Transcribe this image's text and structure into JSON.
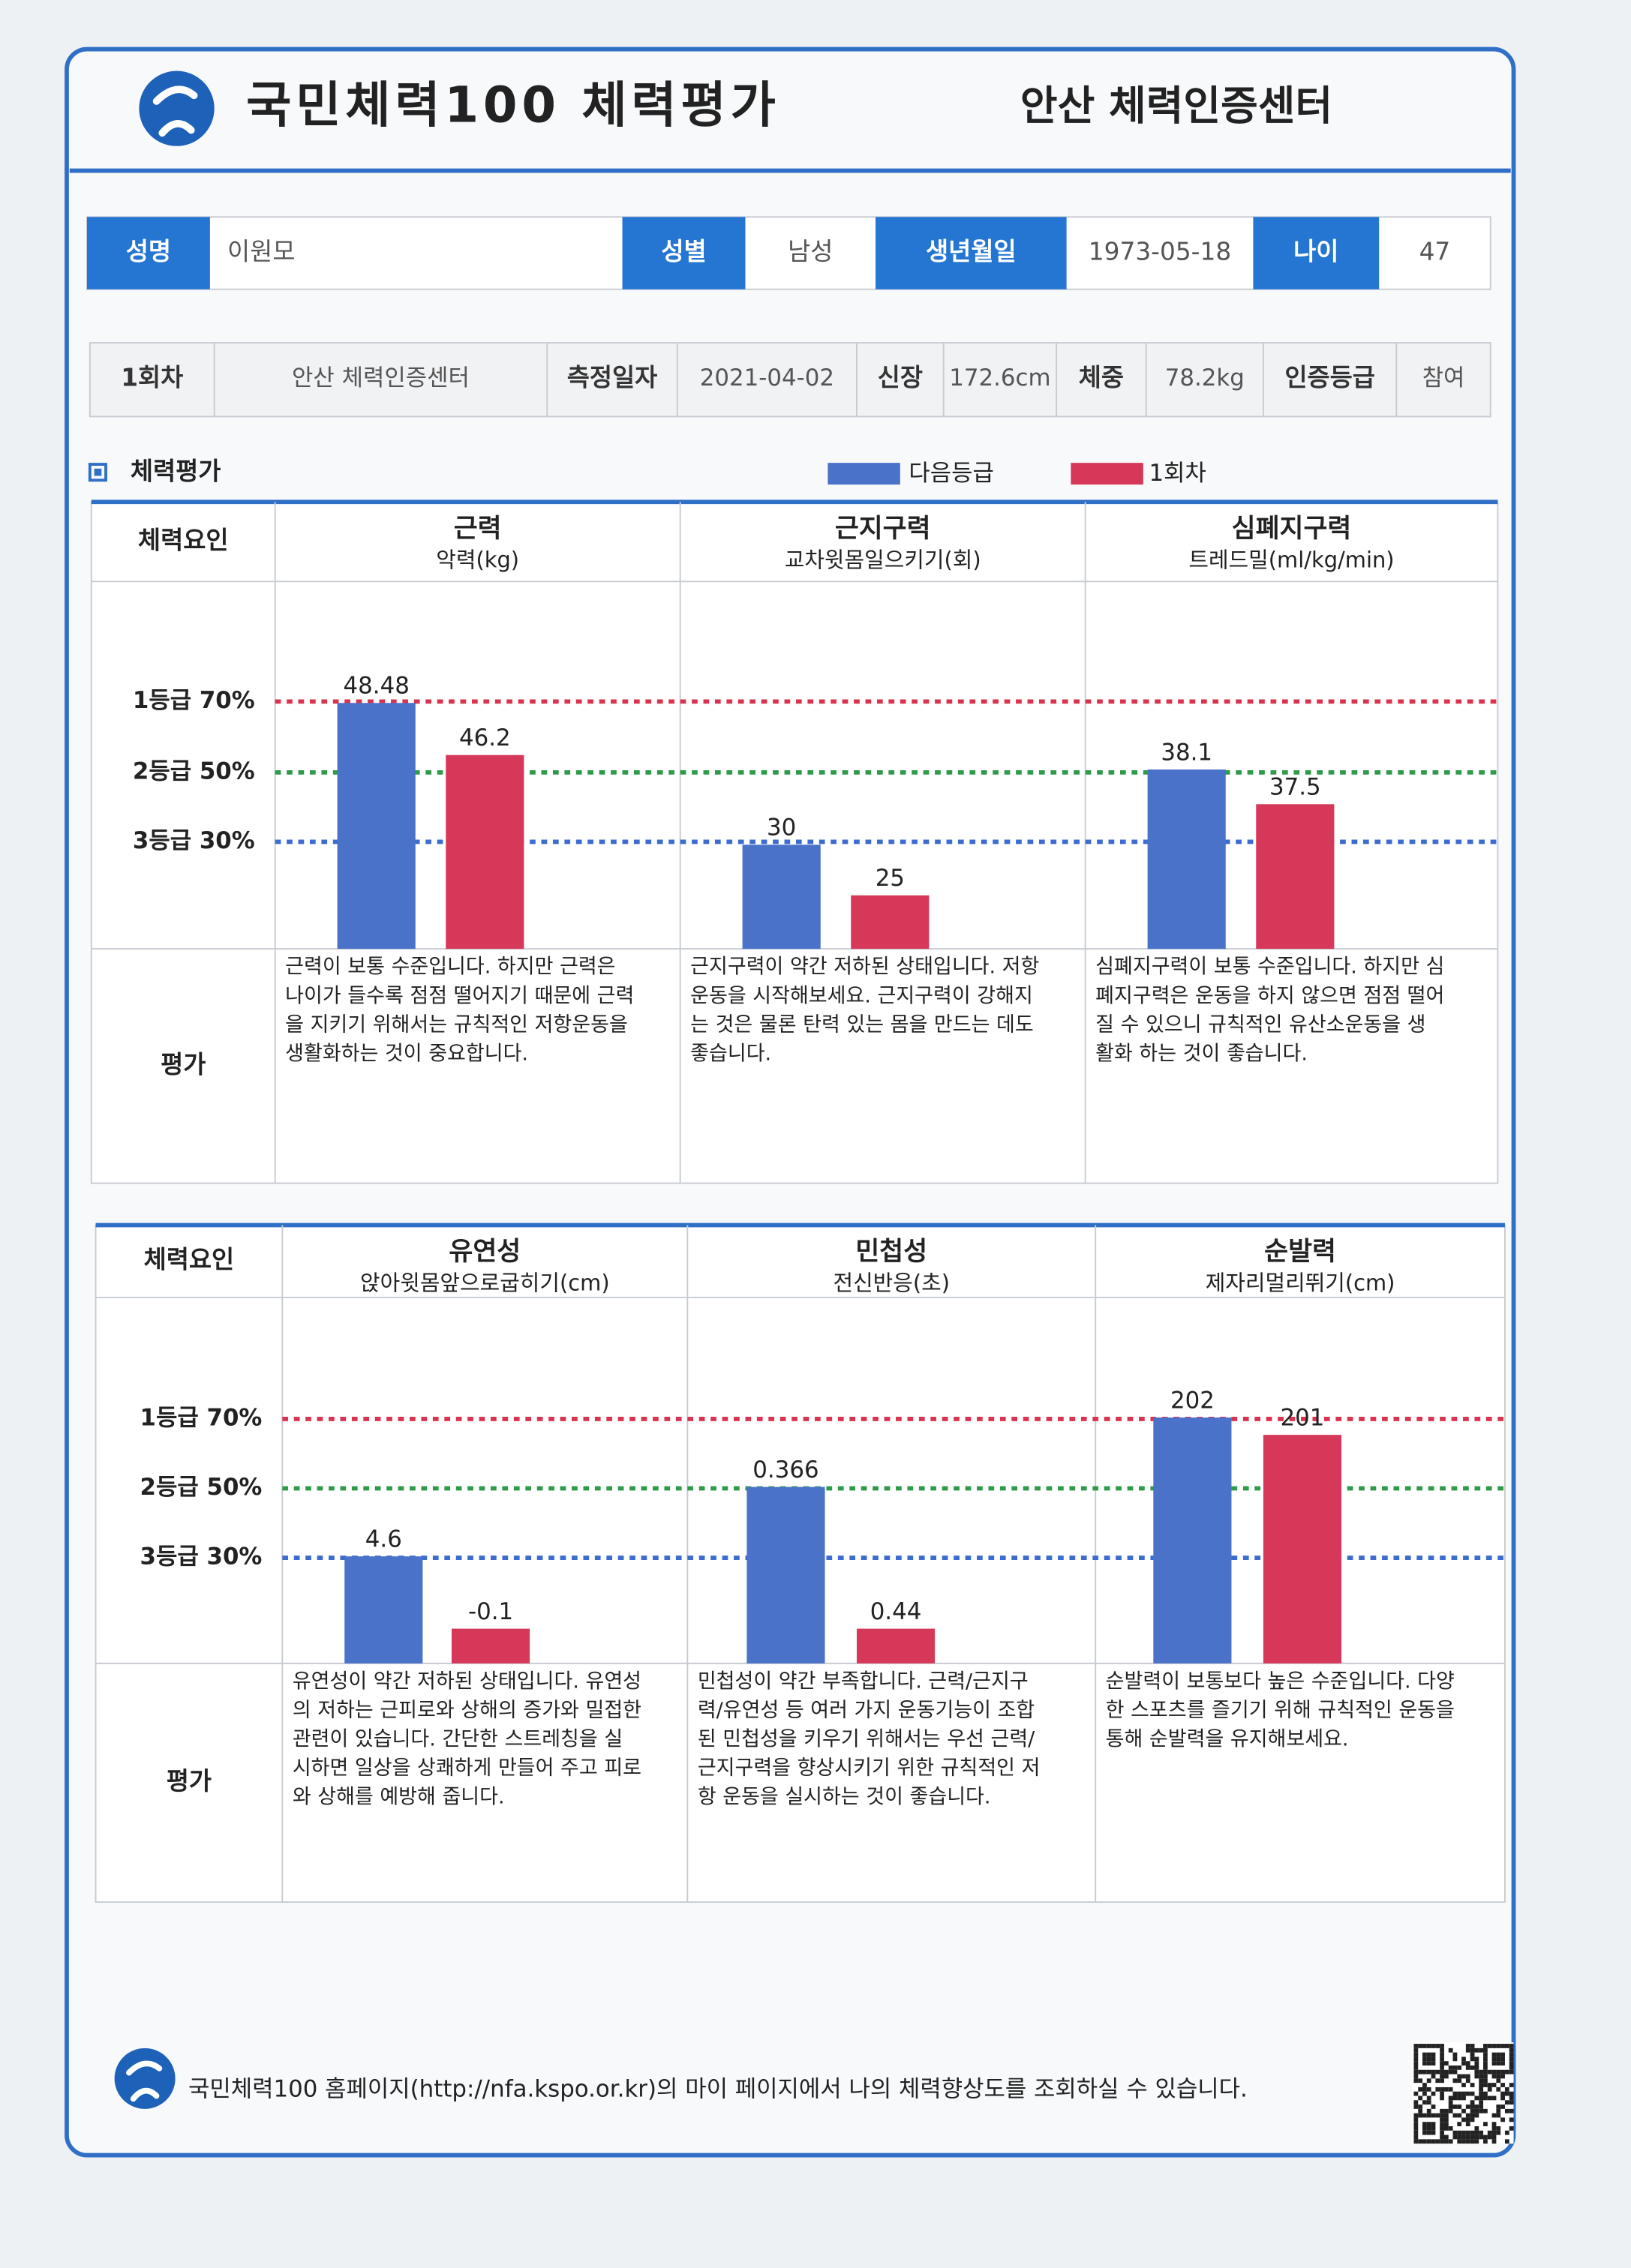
{
  "header": {
    "title": "국민체력100 체력평가",
    "center": "안산 체력인증센터"
  },
  "profile": [
    {
      "label": "성명",
      "value": "이원모"
    },
    {
      "label": "성별",
      "value": "남성"
    },
    {
      "label": "생년월일",
      "value": "1973-05-18"
    },
    {
      "label": "나이",
      "value": "47"
    }
  ],
  "session": {
    "round": "1회차",
    "place": "안산 체력인증센터",
    "fields": [
      {
        "label": "측정일자",
        "value": "2021-04-02"
      },
      {
        "label": "신장",
        "value": "172.6cm"
      },
      {
        "label": "체중",
        "value": "78.2kg"
      },
      {
        "label": "인증등급",
        "value": "참여"
      }
    ]
  },
  "section": {
    "title": "체력평가",
    "legend": [
      "다음등급",
      "1회차"
    ]
  },
  "panels": [
    {
      "factor_label": "체력요인",
      "eval_label": "평가",
      "grades": [
        "1등급 70%",
        "2등급 50%",
        "3등급 30%"
      ],
      "items": [
        {
          "title": "근력",
          "test": "악력(kg)",
          "next": 48.48,
          "current": 46.2,
          "evaluation": [
            "근력이 보통 수준입니다. 하지만 근력은",
            "나이가 들수록 점점 떨어지기 때문에 근력",
            "을 지키기 위해서는 규칙적인 저항운동을",
            "생활화하는 것이 중요합니다."
          ]
        },
        {
          "title": "근지구력",
          "test": "교차윗몸일으키기(회)",
          "next": 30,
          "current": 25,
          "evaluation": [
            "근지구력이 약간 저하된 상태입니다. 저항",
            "운동을 시작해보세요. 근지구력이 강해지",
            "는 것은 물론 탄력 있는 몸을 만드는 데도",
            "좋습니다."
          ]
        },
        {
          "title": "심폐지구력",
          "test": "트레드밀(ml/kg/min)",
          "next": 38.1,
          "current": 37.5,
          "evaluation": [
            "심폐지구력이 보통 수준입니다. 하지만 심",
            "폐지구력은 운동을 하지 않으면 점점 떨어",
            "질 수 있으니  규칙적인 유산소운동을 생",
            "활화 하는 것이 좋습니다."
          ]
        }
      ]
    },
    {
      "factor_label": "체력요인",
      "eval_label": "평가",
      "grades": [
        "1등급 70%",
        "2등급 50%",
        "3등급 30%"
      ],
      "items": [
        {
          "title": "유연성",
          "test": "앉아윗몸앞으로굽히기(cm)",
          "next": 4.6,
          "current": -0.1,
          "evaluation": [
            "유연성이 약간 저하된 상태입니다. 유연성",
            "의 저하는 근피로와 상해의 증가와 밀접한",
            "관련이 있습니다. 간단한 스트레칭을 실",
            "시하면 일상을 상쾌하게 만들어 주고 피로",
            "와 상해를 예방해 줍니다."
          ]
        },
        {
          "title": "민첩성",
          "test": "전신반응(초)",
          "next": 0.366,
          "current": 0.44,
          "evaluation": [
            "민첩성이 약간 부족합니다. 근력/근지구",
            "력/유연성 등 여러 가지 운동기능이 조합",
            "된 민첩성을 키우기 위해서는 우선 근력/",
            "근지구력을 향상시키기 위한 규칙적인 저",
            "항 운동을 실시하는 것이 좋습니다."
          ]
        },
        {
          "title": "순발력",
          "test": "제자리멀리뛰기(cm)",
          "next": 202,
          "current": 201,
          "evaluation": [
            "순발력이 보통보다 높은 수준입니다. 다양",
            "한 스포츠를 즐기기 위해 규칙적인 운동을",
            "통해 순발력을 유지해보세요."
          ]
        }
      ]
    }
  ],
  "footer": "국민체력100 홈페이지(http://nfa.kspo.or.kr)의 마이 페이지에서 나의 체력향상도를 조회하실 수 있습니다."
}
